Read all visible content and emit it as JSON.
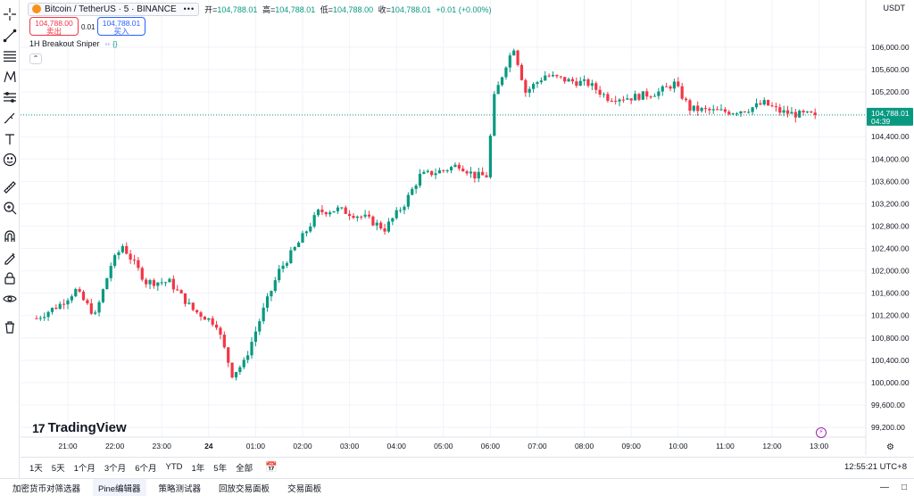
{
  "symbol": {
    "title": "Bitcoin / TetherUS · 5 · BINANCE",
    "more": "•••",
    "ohlc": [
      {
        "label": "开=",
        "value": "104,788.01"
      },
      {
        "label": "高=",
        "value": "104,788.01"
      },
      {
        "label": "低=",
        "value": "104,788.00"
      },
      {
        "label": "收=",
        "value": "104,788.01"
      }
    ],
    "change": "+0.01 (+0.00%)"
  },
  "trade": {
    "sell_price": "104,788.00",
    "sell_label": "卖出",
    "spread": "0.01",
    "buy_price": "104,788.01",
    "buy_label": "买入"
  },
  "indicator": {
    "name": "1H Breakout Sniper",
    "eye": "◦◦",
    "code": "{}",
    "collapse": "⌃"
  },
  "currency": "USDT",
  "price_axis": {
    "labels": [
      "106,000.00",
      "105,600.00",
      "105,200.00",
      "104,400.00",
      "104,000.00",
      "103,600.00",
      "103,200.00",
      "102,800.00",
      "102,400.00",
      "102,000.00",
      "101,600.00",
      "101,200.00",
      "100,800.00",
      "100,400.00",
      "100,000.00",
      "99,600.00",
      "99,200.00"
    ],
    "values": [
      106000,
      105600,
      105200,
      104400,
      104000,
      103600,
      103200,
      102800,
      102400,
      102000,
      101600,
      101200,
      100800,
      100400,
      100000,
      99600,
      99200
    ],
    "current_price": "104,788.01",
    "current_value": 104788.01,
    "countdown": "04:39"
  },
  "time_axis": {
    "labels": [
      "21:00",
      "22:00",
      "23:00",
      "24",
      "01:00",
      "02:00",
      "03:00",
      "04:00",
      "05:00",
      "06:00",
      "07:00",
      "08:00",
      "09:00",
      "10:00",
      "11:00",
      "12:00",
      "13:00"
    ],
    "bold": "24"
  },
  "logo": {
    "mark": "17",
    "text": "TradingView"
  },
  "range_bar": {
    "items": [
      "1天",
      "5天",
      "1个月",
      "3个月",
      "6个月",
      "YTD",
      "1年",
      "5年",
      "全部"
    ],
    "calendar_icon": "calendar-icon",
    "clock": "12:55:21 UTC+8"
  },
  "panel_tabs": [
    "加密货币对筛选器",
    "Pine编辑器",
    "策略测试器",
    "回放交易面板",
    "交易面板"
  ],
  "active_tab": "Pine编辑器",
  "colors": {
    "up": "#089981",
    "down": "#f23645",
    "grid": "#f0f3fa",
    "price_line": "#089981"
  },
  "chart_data": {
    "type": "candlestick",
    "symbol": "BTCUSDT",
    "interval": "5",
    "ylim": [
      99200,
      106200
    ],
    "anchors": [
      {
        "time": "20:20",
        "price": 101150
      },
      {
        "time": "20:50",
        "price": 101400
      },
      {
        "time": "21:10",
        "price": 101650
      },
      {
        "time": "21:35",
        "price": 101200
      },
      {
        "time": "21:55",
        "price": 102100
      },
      {
        "time": "22:10",
        "price": 102450
      },
      {
        "time": "22:40",
        "price": 101800
      },
      {
        "time": "23:10",
        "price": 101800
      },
      {
        "time": "23:40",
        "price": 101300
      },
      {
        "time": "00:10",
        "price": 101050
      },
      {
        "time": "00:30",
        "price": 100150
      },
      {
        "time": "00:45",
        "price": 100350
      },
      {
        "time": "01:10",
        "price": 101300
      },
      {
        "time": "01:30",
        "price": 102000
      },
      {
        "time": "01:55",
        "price": 102500
      },
      {
        "time": "02:20",
        "price": 103050
      },
      {
        "time": "02:45",
        "price": 103100
      },
      {
        "time": "03:20",
        "price": 102950
      },
      {
        "time": "03:45",
        "price": 102750
      },
      {
        "time": "04:10",
        "price": 103200
      },
      {
        "time": "04:30",
        "price": 103700
      },
      {
        "time": "05:00",
        "price": 103800
      },
      {
        "time": "05:20",
        "price": 103900
      },
      {
        "time": "05:40",
        "price": 103700
      },
      {
        "time": "05:55",
        "price": 103700
      },
      {
        "time": "06:05",
        "price": 105100
      },
      {
        "time": "06:20",
        "price": 105700
      },
      {
        "time": "06:30",
        "price": 106000
      },
      {
        "time": "06:45",
        "price": 105200
      },
      {
        "time": "07:10",
        "price": 105500
      },
      {
        "time": "07:40",
        "price": 105400
      },
      {
        "time": "08:05",
        "price": 105350
      },
      {
        "time": "08:30",
        "price": 105100
      },
      {
        "time": "09:00",
        "price": 105100
      },
      {
        "time": "09:35",
        "price": 105200
      },
      {
        "time": "09:55",
        "price": 105350
      },
      {
        "time": "10:15",
        "price": 104900
      },
      {
        "time": "10:50",
        "price": 104850
      },
      {
        "time": "11:10",
        "price": 104850
      },
      {
        "time": "11:30",
        "price": 104900
      },
      {
        "time": "11:50",
        "price": 105000
      },
      {
        "time": "12:10",
        "price": 104850
      },
      {
        "time": "12:30",
        "price": 104800
      },
      {
        "time": "12:55",
        "price": 104788
      }
    ]
  }
}
